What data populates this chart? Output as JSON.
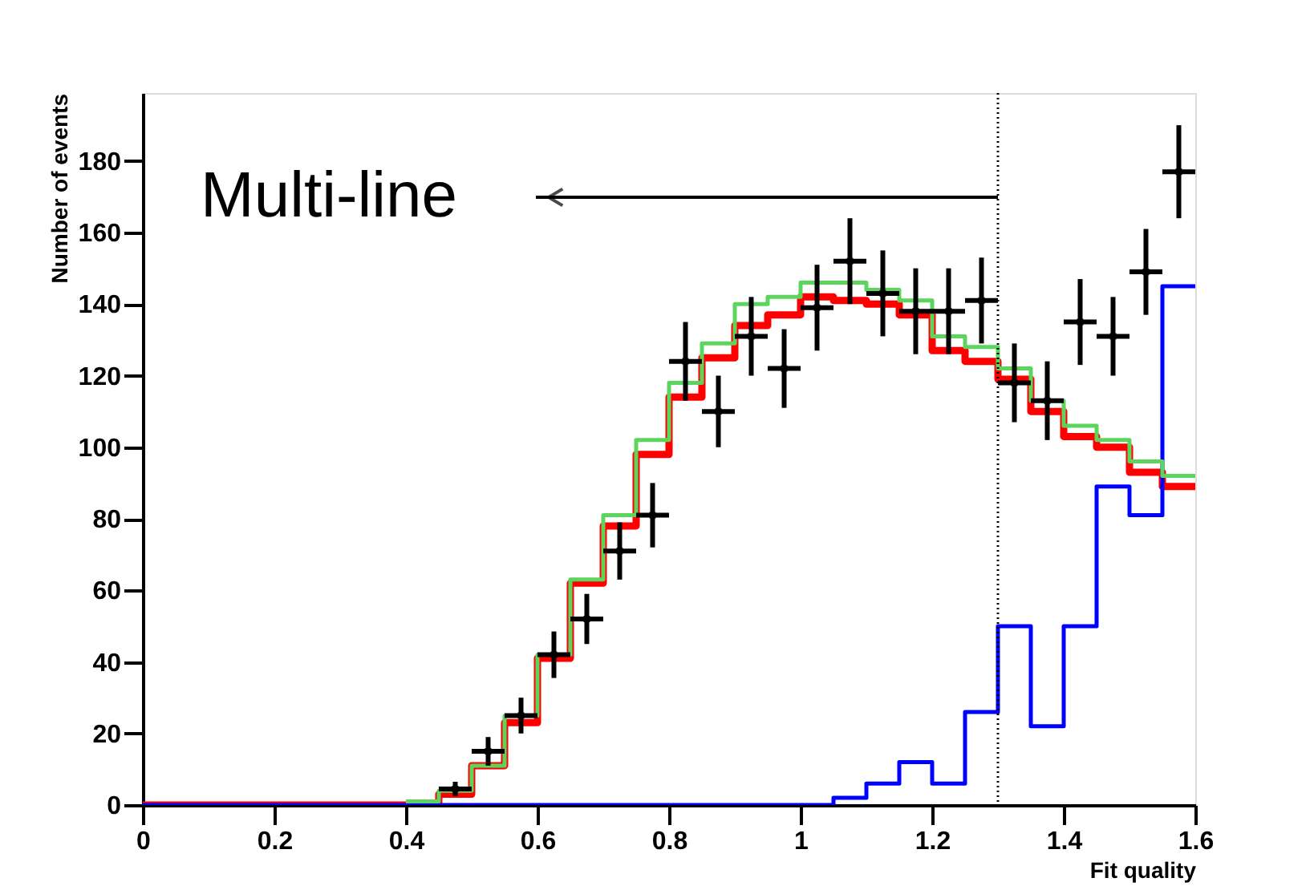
{
  "chart_data": {
    "type": "step",
    "xlabel": "Fit quality",
    "ylabel": "Number of events",
    "x": [
      0,
      0.05,
      0.1,
      0.15,
      0.2,
      0.25,
      0.3,
      0.35,
      0.4,
      0.45,
      0.5,
      0.55,
      0.6,
      0.65,
      0.7,
      0.75,
      0.8,
      0.85,
      0.9,
      0.95,
      1.0,
      1.05,
      1.1,
      1.15,
      1.2,
      1.25,
      1.3,
      1.35,
      1.4,
      1.45,
      1.5,
      1.55,
      1.6
    ],
    "series": [
      {
        "color": "#5dd55d",
        "values": [
          null,
          null,
          null,
          null,
          null,
          null,
          null,
          null,
          1,
          4,
          11,
          25,
          42,
          63,
          81,
          102,
          118,
          129,
          140,
          142,
          146,
          146,
          144,
          141,
          131,
          128,
          122,
          113,
          106,
          102,
          96,
          92,
          92
        ]
      },
      {
        "color": "#ff0000",
        "values": [
          0,
          0,
          0,
          0,
          0,
          0,
          0,
          0,
          0,
          3,
          11,
          23,
          41,
          62,
          78,
          98,
          114,
          125,
          134,
          137,
          142,
          141,
          140,
          137,
          127,
          124,
          119,
          110,
          103,
          100,
          93,
          89,
          89
        ]
      },
      {
        "color": "#0000ff",
        "values": [
          0,
          0,
          0,
          0,
          0,
          0,
          0,
          0,
          0,
          0,
          0,
          0,
          0,
          0,
          0,
          0,
          0,
          0,
          0,
          0,
          0,
          2,
          6,
          12,
          6,
          26,
          50,
          22,
          50,
          89,
          81,
          145,
          145
        ]
      },
      {
        "type": "scatter",
        "marker": "square",
        "color": "#000000",
        "x": [
          0.475,
          0.525,
          0.575,
          0.625,
          0.675,
          0.725,
          0.775,
          0.825,
          0.875,
          0.925,
          0.975,
          1.025,
          1.075,
          1.125,
          1.175,
          1.225,
          1.275,
          1.325,
          1.375,
          1.425,
          1.475,
          1.525,
          1.575
        ],
        "values": [
          4.5,
          15,
          25,
          42,
          52,
          71,
          81,
          124,
          110,
          131,
          122,
          139,
          152,
          143,
          138,
          138,
          141,
          118,
          113,
          135,
          131,
          149,
          177
        ],
        "errors": [
          2,
          4,
          5,
          6.5,
          7,
          8,
          9,
          11,
          10,
          11,
          11,
          12,
          12,
          12,
          12,
          12,
          12,
          11,
          11,
          12,
          11,
          12,
          13
        ],
        "xerrors": [
          0.025,
          0.025,
          0.025,
          0.025,
          0.025,
          0.025,
          0.025,
          0.025,
          0.025,
          0.025,
          0.025,
          0.025,
          0.025,
          0.025,
          0.025,
          0.025,
          0.025,
          0.025,
          0.025,
          0.025,
          0.025,
          0.025,
          0.025
        ]
      }
    ],
    "xlim": [
      0,
      1.6
    ],
    "xticks": [
      0,
      0.2,
      0.4,
      0.6,
      0.8,
      1,
      1.2,
      1.4,
      1.6
    ],
    "ylim": [
      0,
      199
    ],
    "yticks": [
      0,
      20,
      40,
      60,
      80,
      100,
      120,
      140,
      160,
      180
    ],
    "grid": false,
    "legend": false,
    "ref_lines": [
      {
        "axis": "x",
        "value": 1.3,
        "line_style": "dotted",
        "color": "#000000"
      }
    ],
    "annotations": [
      "Multi-line"
    ]
  }
}
